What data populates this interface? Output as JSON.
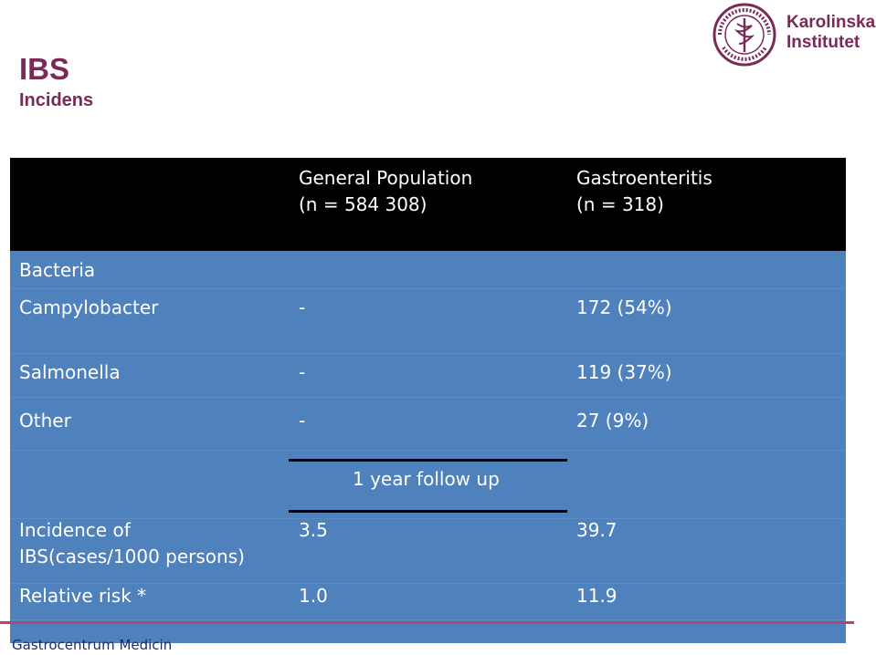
{
  "slide": {
    "title": "IBS",
    "subtitle": "Incidens",
    "footer": "Gastrocentrum Medicin"
  },
  "logo": {
    "line1": "Karolinska",
    "line2": "Institutet",
    "seal_text": "KAROLINSKA INSTITUTET ANNO 1810",
    "icon": "karolinska-seal-icon"
  },
  "table": {
    "header": {
      "col1_line1": "General Population",
      "col1_line2": "(n = 584 308)",
      "col2_line1": "Gastroenteritis",
      "col2_line2": "(n = 318)"
    },
    "rows": [
      {
        "label": "Bacteria",
        "general": "",
        "gastro": ""
      },
      {
        "label": "Campylobacter",
        "general": "-",
        "gastro": "172 (54%)"
      },
      {
        "label": "Salmonella",
        "general": "-",
        "gastro": "119 (37%)"
      },
      {
        "label": "Other",
        "general": "-",
        "gastro": "27 (9%)"
      }
    ],
    "follow_up": "1 year follow up",
    "incidence": {
      "label_line1": "Incidence of",
      "label_line2": "IBS(cases/1000 persons)",
      "general": "3.5",
      "gastro": "39.7"
    },
    "relative_risk": {
      "label": "Relative risk *",
      "general": "1.0",
      "gastro": "11.9"
    }
  },
  "colors": {
    "title": "#7b2a57",
    "table_body": "#4f81bd",
    "table_header": "#000000",
    "accent_line": "#b5446f"
  }
}
